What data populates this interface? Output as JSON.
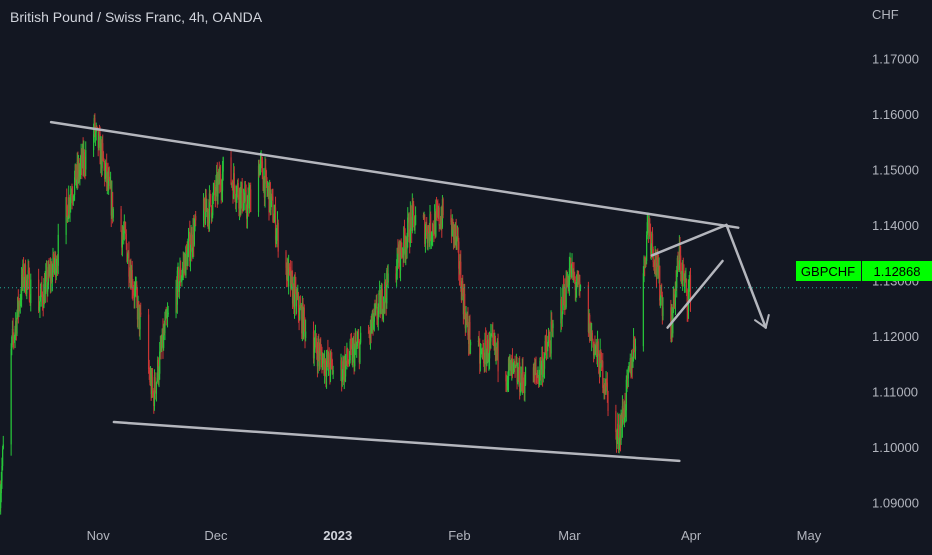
{
  "header": {
    "title": "British Pound / Swiss Franc, 4h, OANDA",
    "currency": "CHF"
  },
  "colors": {
    "background": "#131722",
    "up": "#26c43a",
    "down": "#c93434",
    "axis_text": "#b2b5be",
    "drawing": "#b4b6bd",
    "price_tag": "#00ff00",
    "price_tag_text": "#000000",
    "current_price_line": "#22ab94"
  },
  "price_tag": {
    "symbol": "GBPCHF",
    "value": "1.12868"
  },
  "chart_data": {
    "type": "candlestick",
    "symbol": "GBPCHF",
    "interval": "4h",
    "source": "OANDA",
    "y_unit": "CHF",
    "ylim": [
      1.0865,
      1.1805
    ],
    "y_ticks": [
      {
        "value": 1.17,
        "label": "1.17000"
      },
      {
        "value": 1.16,
        "label": "1.16000"
      },
      {
        "value": 1.15,
        "label": "1.15000"
      },
      {
        "value": 1.14,
        "label": "1.14000"
      },
      {
        "value": 1.13,
        "label": "1.13000"
      },
      {
        "value": 1.12,
        "label": "1.12000"
      },
      {
        "value": 1.11,
        "label": "1.11000"
      },
      {
        "value": 1.1,
        "label": "1.10000"
      },
      {
        "value": 1.09,
        "label": "1.09000"
      }
    ],
    "x_range": [
      "2022-10-07",
      "2023-05-14"
    ],
    "x_ticks": [
      {
        "date": "2022-11-01",
        "label": "Nov",
        "bold": false
      },
      {
        "date": "2022-12-01",
        "label": "Dec",
        "bold": false
      },
      {
        "date": "2023-01-01",
        "label": "2023",
        "bold": true
      },
      {
        "date": "2023-02-01",
        "label": "Feb",
        "bold": false
      },
      {
        "date": "2023-03-01",
        "label": "Mar",
        "bold": false
      },
      {
        "date": "2023-04-01",
        "label": "Apr",
        "bold": false
      },
      {
        "date": "2023-05-01",
        "label": "May",
        "bold": false
      }
    ],
    "last_price": 1.12868,
    "grid": false,
    "price_path": [
      [
        "2022-10-07",
        1.092
      ],
      [
        "2022-10-10",
        1.118
      ],
      [
        "2022-10-13",
        1.131
      ],
      [
        "2022-10-17",
        1.126
      ],
      [
        "2022-10-21",
        1.133
      ],
      [
        "2022-10-25",
        1.146
      ],
      [
        "2022-10-28",
        1.151
      ],
      [
        "2022-10-31",
        1.157
      ],
      [
        "2022-11-02",
        1.152
      ],
      [
        "2022-11-05",
        1.142
      ],
      [
        "2022-11-08",
        1.137
      ],
      [
        "2022-11-11",
        1.125
      ],
      [
        "2022-11-14",
        1.113
      ],
      [
        "2022-11-15",
        1.109
      ],
      [
        "2022-11-18",
        1.121
      ],
      [
        "2022-11-22",
        1.131
      ],
      [
        "2022-11-26",
        1.14
      ],
      [
        "2022-11-30",
        1.144
      ],
      [
        "2022-12-03",
        1.15
      ],
      [
        "2022-12-06",
        1.147
      ],
      [
        "2022-12-09",
        1.143
      ],
      [
        "2022-12-12",
        1.151
      ],
      [
        "2022-12-15",
        1.144
      ],
      [
        "2022-12-18",
        1.134
      ],
      [
        "2022-12-21",
        1.127
      ],
      [
        "2022-12-24",
        1.121
      ],
      [
        "2022-12-28",
        1.116
      ],
      [
        "2023-01-01",
        1.113
      ],
      [
        "2023-01-05",
        1.117
      ],
      [
        "2023-01-09",
        1.12
      ],
      [
        "2023-01-13",
        1.128
      ],
      [
        "2023-01-17",
        1.135
      ],
      [
        "2023-01-20",
        1.141
      ],
      [
        "2023-01-24",
        1.139
      ],
      [
        "2023-01-28",
        1.142
      ],
      [
        "2023-01-31",
        1.138
      ],
      [
        "2023-02-03",
        1.121
      ],
      [
        "2023-02-06",
        1.116
      ],
      [
        "2023-02-09",
        1.118
      ],
      [
        "2023-02-13",
        1.114
      ],
      [
        "2023-02-17",
        1.112
      ],
      [
        "2023-02-21",
        1.113
      ],
      [
        "2023-02-25",
        1.121
      ],
      [
        "2023-02-28",
        1.128
      ],
      [
        "2023-03-01",
        1.132
      ],
      [
        "2023-03-04",
        1.127
      ],
      [
        "2023-03-07",
        1.119
      ],
      [
        "2023-03-10",
        1.112
      ],
      [
        "2023-03-13",
        1.101
      ],
      [
        "2023-03-15",
        1.107
      ],
      [
        "2023-03-18",
        1.121
      ],
      [
        "2023-03-20",
        1.132
      ],
      [
        "2023-03-21",
        1.141
      ],
      [
        "2023-03-23",
        1.133
      ],
      [
        "2023-03-25",
        1.125
      ],
      [
        "2023-03-27",
        1.122
      ],
      [
        "2023-03-28",
        1.129
      ],
      [
        "2023-03-29",
        1.134
      ],
      [
        "2023-03-31",
        1.127
      ],
      [
        "2023-04-01",
        1.129
      ]
    ],
    "drawings": [
      {
        "name": "upper-trend-line",
        "points": [
          [
            "2022-10-20",
            1.1585
          ],
          [
            "2023-04-13",
            1.1395
          ]
        ]
      },
      {
        "name": "lower-trend-line",
        "points": [
          [
            "2022-11-05",
            1.1045
          ],
          [
            "2023-03-29",
            1.0975
          ]
        ]
      },
      {
        "name": "wedge-upper-line",
        "points": [
          [
            "2023-03-22",
            1.1345
          ],
          [
            "2023-04-10",
            1.14
          ]
        ]
      },
      {
        "name": "wedge-lower-line",
        "points": [
          [
            "2023-03-26",
            1.1215
          ],
          [
            "2023-04-09",
            1.1335
          ]
        ]
      },
      {
        "name": "projection-arrow-line",
        "points": [
          [
            "2023-04-10",
            1.14
          ],
          [
            "2023-04-20",
            1.1215
          ]
        ]
      }
    ]
  }
}
